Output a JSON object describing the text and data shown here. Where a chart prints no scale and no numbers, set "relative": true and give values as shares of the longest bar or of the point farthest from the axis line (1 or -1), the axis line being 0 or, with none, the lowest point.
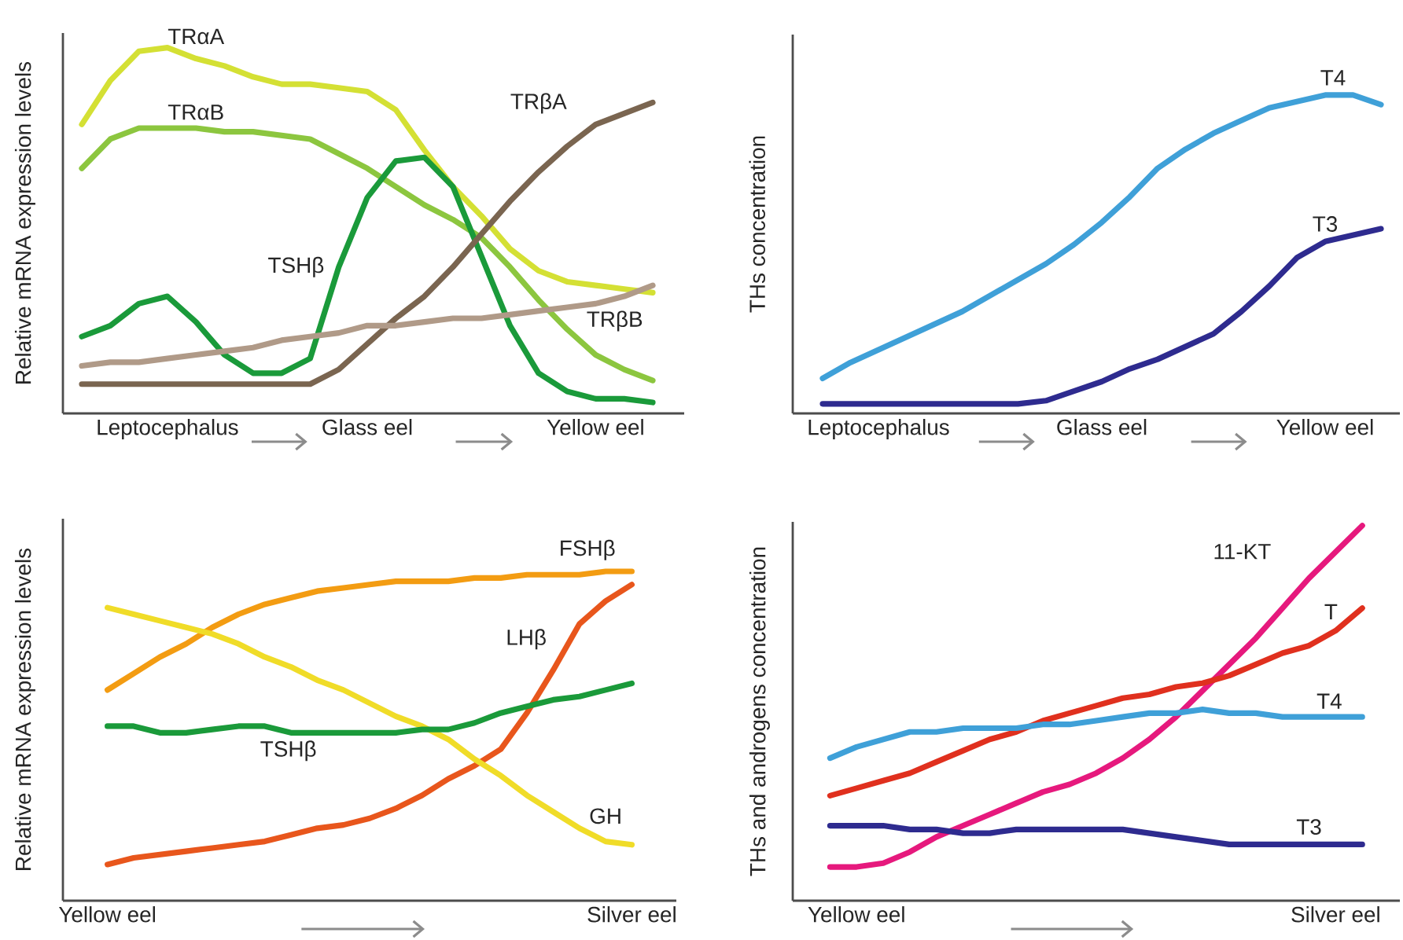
{
  "chart_data": [
    {
      "type": "line",
      "relative": true,
      "ylabel": "Relative mRNA expression levels",
      "categories": [
        null,
        null,
        null,
        "Leptocephalus",
        null,
        null,
        null,
        null,
        null,
        null,
        "Glass eel",
        null,
        null,
        null,
        null,
        null,
        null,
        null,
        "Yellow eel",
        null,
        null
      ],
      "series": [
        {
          "name": "TRαA",
          "color": "#d4e034",
          "values": [
            0.79,
            0.91,
            0.99,
            1.0,
            0.97,
            0.95,
            0.92,
            0.9,
            0.9,
            0.89,
            0.88,
            0.83,
            0.72,
            0.62,
            0.54,
            0.45,
            0.39,
            0.36,
            0.35,
            0.34,
            0.33
          ]
        },
        {
          "name": "TRαB",
          "color": "#8cc63f",
          "values": [
            0.67,
            0.75,
            0.78,
            0.78,
            0.78,
            0.77,
            0.77,
            0.76,
            0.75,
            0.71,
            0.67,
            0.62,
            0.57,
            0.53,
            0.48,
            0.4,
            0.31,
            0.23,
            0.16,
            0.12,
            0.09
          ]
        },
        {
          "name": "TSHβ",
          "color": "#1a9a3a",
          "values": [
            0.21,
            0.24,
            0.3,
            0.32,
            0.25,
            0.16,
            0.11,
            0.11,
            0.15,
            0.4,
            0.59,
            0.69,
            0.7,
            0.62,
            0.43,
            0.24,
            0.11,
            0.06,
            0.04,
            0.04,
            0.03
          ]
        },
        {
          "name": "TRβA",
          "color": "#7a6550",
          "values": [
            0.08,
            0.08,
            0.08,
            0.08,
            0.08,
            0.08,
            0.08,
            0.08,
            0.08,
            0.12,
            0.19,
            0.26,
            0.32,
            0.4,
            0.49,
            0.58,
            0.66,
            0.73,
            0.79,
            0.82,
            0.85
          ]
        },
        {
          "name": "TRβB",
          "color": "#b09a88",
          "values": [
            0.13,
            0.14,
            0.14,
            0.15,
            0.16,
            0.17,
            0.18,
            0.2,
            0.21,
            0.22,
            0.24,
            0.24,
            0.25,
            0.26,
            0.26,
            0.27,
            0.28,
            0.29,
            0.3,
            0.32,
            0.35
          ]
        }
      ]
    },
    {
      "type": "line",
      "relative": true,
      "ylabel": "THs concentration",
      "categories": [
        null,
        null,
        "Leptocephalus",
        null,
        null,
        null,
        null,
        null,
        null,
        null,
        "Glass eel",
        null,
        null,
        null,
        null,
        null,
        null,
        null,
        "Yellow eel",
        null,
        null
      ],
      "series": [
        {
          "name": "T4",
          "color": "#3fa0d8",
          "values": [
            0.11,
            0.16,
            0.2,
            0.24,
            0.28,
            0.32,
            0.37,
            0.42,
            0.47,
            0.53,
            0.6,
            0.68,
            0.77,
            0.83,
            0.88,
            0.92,
            0.96,
            0.98,
            1.0,
            1.0,
            0.97
          ]
        },
        {
          "name": "T3",
          "color": "#2e2b8f",
          "values": [
            0.03,
            0.03,
            0.03,
            0.03,
            0.03,
            0.03,
            0.03,
            0.03,
            0.04,
            0.07,
            0.1,
            0.14,
            0.17,
            0.21,
            0.25,
            0.32,
            0.4,
            0.49,
            0.54,
            0.56,
            0.58
          ]
        }
      ]
    },
    {
      "type": "line",
      "relative": true,
      "ylabel": "Relative mRNA expression levels",
      "categories": [
        "Yellow eel",
        null,
        null,
        null,
        null,
        null,
        null,
        null,
        null,
        null,
        null,
        null,
        null,
        null,
        null,
        null,
        null,
        null,
        null,
        null,
        "Silver eel"
      ],
      "series": [
        {
          "name": "FSHβ",
          "color": "#f39c12",
          "values": [
            0.64,
            0.69,
            0.74,
            0.78,
            0.83,
            0.87,
            0.9,
            0.92,
            0.94,
            0.95,
            0.96,
            0.97,
            0.97,
            0.97,
            0.98,
            0.98,
            0.99,
            0.99,
            0.99,
            1.0,
            1.0
          ]
        },
        {
          "name": "LHβ",
          "color": "#e8561c",
          "values": [
            0.11,
            0.13,
            0.14,
            0.15,
            0.16,
            0.17,
            0.18,
            0.2,
            0.22,
            0.23,
            0.25,
            0.28,
            0.32,
            0.37,
            0.41,
            0.46,
            0.57,
            0.7,
            0.84,
            0.91,
            0.96
          ]
        },
        {
          "name": "GH",
          "color": "#f0dc28",
          "values": [
            0.89,
            0.87,
            0.85,
            0.83,
            0.81,
            0.78,
            0.74,
            0.71,
            0.67,
            0.64,
            0.6,
            0.56,
            0.53,
            0.49,
            0.43,
            0.38,
            0.32,
            0.27,
            0.22,
            0.18,
            0.17
          ]
        },
        {
          "name": "TSHβ",
          "color": "#1a9a3a",
          "values": [
            0.53,
            0.53,
            0.51,
            0.51,
            0.52,
            0.53,
            0.53,
            0.51,
            0.51,
            0.51,
            0.51,
            0.51,
            0.52,
            0.52,
            0.54,
            0.57,
            0.59,
            0.61,
            0.62,
            0.64,
            0.66
          ]
        }
      ]
    },
    {
      "type": "line",
      "relative": true,
      "ylabel": "THs and androgens concentration",
      "categories": [
        null,
        "Yellow eel",
        null,
        null,
        null,
        null,
        null,
        null,
        null,
        null,
        null,
        null,
        null,
        null,
        null,
        null,
        null,
        null,
        null,
        "Silver eel",
        null
      ],
      "series": [
        {
          "name": "11-KT",
          "color": "#e6197d",
          "values": [
            0.09,
            0.09,
            0.1,
            0.13,
            0.17,
            0.2,
            0.23,
            0.26,
            0.29,
            0.31,
            0.34,
            0.38,
            0.43,
            0.49,
            0.56,
            0.63,
            0.7,
            0.78,
            0.86,
            0.93,
            1.0
          ]
        },
        {
          "name": "T",
          "color": "#e0301e",
          "values": [
            0.28,
            0.3,
            0.32,
            0.34,
            0.37,
            0.4,
            0.43,
            0.45,
            0.48,
            0.5,
            0.52,
            0.54,
            0.55,
            0.57,
            0.58,
            0.6,
            0.63,
            0.66,
            0.68,
            0.72,
            0.78
          ]
        },
        {
          "name": "T4",
          "color": "#3fa0d8",
          "values": [
            0.38,
            0.41,
            0.43,
            0.45,
            0.45,
            0.46,
            0.46,
            0.46,
            0.47,
            0.47,
            0.48,
            0.49,
            0.5,
            0.5,
            0.51,
            0.5,
            0.5,
            0.49,
            0.49,
            0.49,
            0.49
          ]
        },
        {
          "name": "T3",
          "color": "#2e2b8f",
          "values": [
            0.2,
            0.2,
            0.2,
            0.19,
            0.19,
            0.18,
            0.18,
            0.19,
            0.19,
            0.19,
            0.19,
            0.19,
            0.18,
            0.17,
            0.16,
            0.15,
            0.15,
            0.15,
            0.15,
            0.15,
            0.15
          ]
        }
      ]
    }
  ]
}
